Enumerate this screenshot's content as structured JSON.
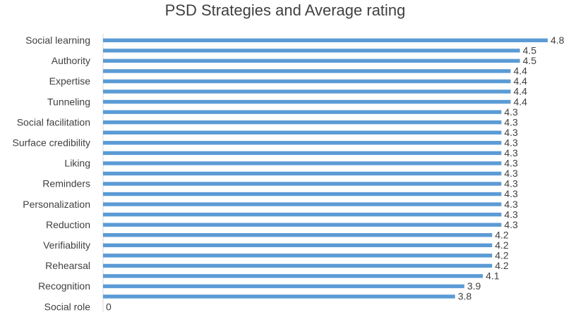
{
  "chart_data": {
    "type": "bar",
    "orientation": "horizontal",
    "title": "PSD Strategies and Average rating",
    "categories": [
      "Social learning",
      null,
      "Authority",
      null,
      "Expertise",
      null,
      "Tunneling",
      null,
      "Social facilitation",
      null,
      "Surface credibility",
      null,
      "Liking",
      null,
      "Reminders",
      null,
      "Personalization",
      null,
      "Reduction",
      null,
      "Verifiability",
      null,
      "Rehearsal",
      null,
      "Recognition",
      null,
      "Social role"
    ],
    "values": [
      4.8,
      4.5,
      4.5,
      4.4,
      4.4,
      4.4,
      4.4,
      4.3,
      4.3,
      4.3,
      4.3,
      4.3,
      4.3,
      4.3,
      4.3,
      4.3,
      4.3,
      4.3,
      4.3,
      4.2,
      4.2,
      4.2,
      4.2,
      4.1,
      3.9,
      3.8,
      0
    ],
    "color": "#5b9bd5",
    "xlim": [
      0,
      4.8
    ]
  }
}
